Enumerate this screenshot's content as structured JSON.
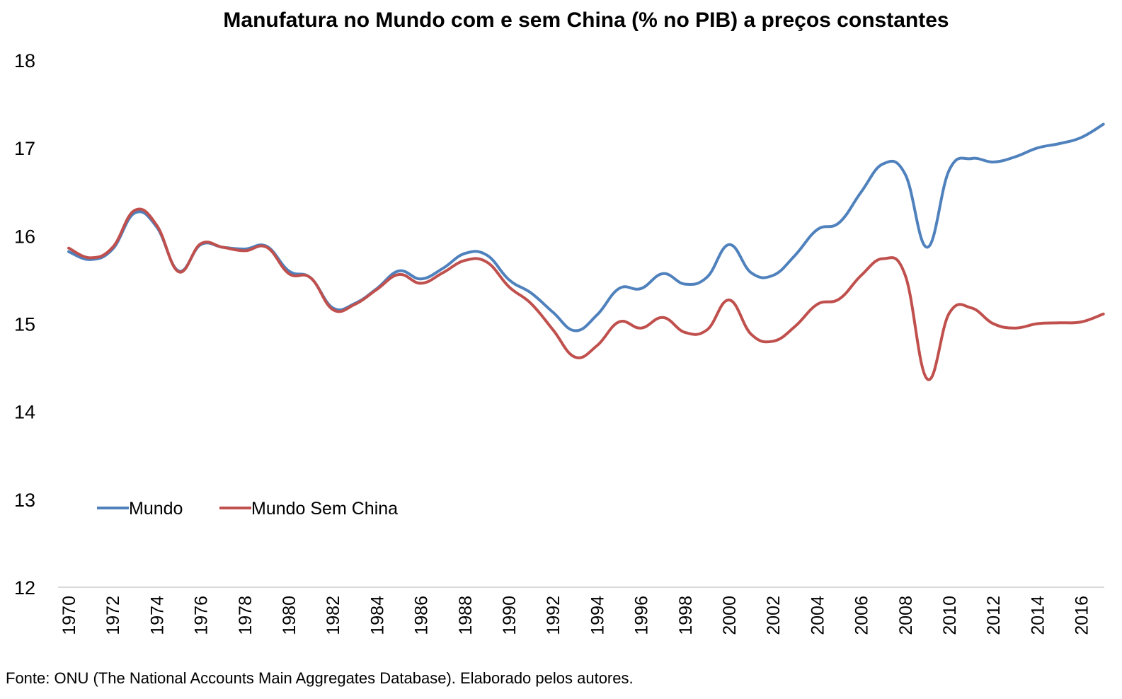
{
  "chart_data": {
    "type": "line",
    "title": "Manufatura no Mundo com e sem China (% no PIB) a preços constantes",
    "xlabel": "",
    "ylabel": "",
    "ylim": [
      12,
      18
    ],
    "yticks": [
      "12",
      "13",
      "14",
      "15",
      "16",
      "17",
      "18"
    ],
    "x": [
      1970,
      1971,
      1972,
      1973,
      1974,
      1975,
      1976,
      1977,
      1978,
      1979,
      1980,
      1981,
      1982,
      1983,
      1984,
      1985,
      1986,
      1987,
      1988,
      1989,
      1990,
      1991,
      1992,
      1993,
      1994,
      1995,
      1996,
      1997,
      1998,
      1999,
      2000,
      2001,
      2002,
      2003,
      2004,
      2005,
      2006,
      2007,
      2008,
      2009,
      2010,
      2011,
      2012,
      2013,
      2014,
      2015,
      2016,
      2017
    ],
    "xticks": [
      "1970",
      "1972",
      "1974",
      "1976",
      "1978",
      "1980",
      "1982",
      "1984",
      "1986",
      "1988",
      "1990",
      "1992",
      "1994",
      "1996",
      "1998",
      "2000",
      "2002",
      "2004",
      "2006",
      "2008",
      "2010",
      "2012",
      "2014",
      "2016"
    ],
    "grid": false,
    "legend_position": "bottom-left",
    "series": [
      {
        "name": "Mundo",
        "color": "#4f81bd",
        "values": [
          15.82,
          15.73,
          15.85,
          16.26,
          16.1,
          15.6,
          15.9,
          15.87,
          15.85,
          15.88,
          15.6,
          15.52,
          15.18,
          15.23,
          15.4,
          15.6,
          15.51,
          15.63,
          15.8,
          15.78,
          15.5,
          15.35,
          15.13,
          14.92,
          15.1,
          15.4,
          15.4,
          15.57,
          15.45,
          15.53,
          15.9,
          15.58,
          15.55,
          15.78,
          16.07,
          16.15,
          16.5,
          16.82,
          16.7,
          15.87,
          16.75,
          16.88,
          16.84,
          16.9,
          17.0,
          17.05,
          17.12,
          17.27
        ]
      },
      {
        "name": "Mundo Sem China",
        "color": "#c0504d",
        "values": [
          15.86,
          15.75,
          15.87,
          16.29,
          16.12,
          15.59,
          15.91,
          15.87,
          15.83,
          15.87,
          15.57,
          15.52,
          15.16,
          15.22,
          15.39,
          15.56,
          15.46,
          15.58,
          15.72,
          15.7,
          15.42,
          15.23,
          14.93,
          14.62,
          14.75,
          15.02,
          14.95,
          15.07,
          14.9,
          14.93,
          15.27,
          14.88,
          14.8,
          14.97,
          15.22,
          15.28,
          15.55,
          15.74,
          15.55,
          14.37,
          15.12,
          15.18,
          15.0,
          14.95,
          15.0,
          15.01,
          15.02,
          15.11
        ]
      }
    ],
    "source_note": "Fonte: ONU (The National Accounts Main Aggregates Database). Elaborado pelos autores."
  }
}
